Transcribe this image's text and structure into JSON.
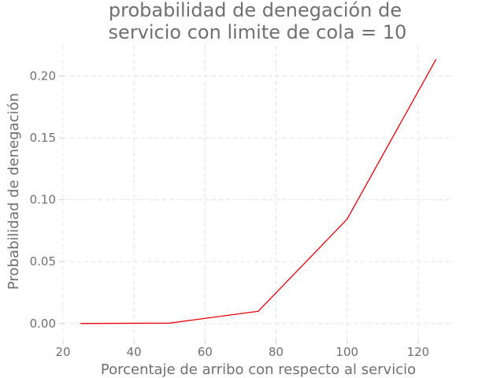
{
  "chart_data": {
    "type": "line",
    "title_lines": [
      "probabilidad de denegación de",
      "servicio con limite de cola = 10"
    ],
    "xlabel": "Porcentaje de arribo con respecto al servicio",
    "ylabel": "Probabilidad de denegación",
    "xlim": [
      20,
      130
    ],
    "ylim": [
      -0.0135,
      0.2245
    ],
    "xticks": [
      20,
      40,
      60,
      80,
      100,
      120
    ],
    "xtick_labels": [
      "20",
      "40",
      "60",
      "80",
      "100",
      "120"
    ],
    "yticks": [
      0.0,
      0.05,
      0.1,
      0.15,
      0.2
    ],
    "ytick_labels": [
      "0.00",
      "0.05",
      "0.10",
      "0.15",
      "0.20"
    ],
    "grid": true,
    "series": [
      {
        "color": "#e8000b",
        "x": [
          25,
          50,
          75,
          100,
          125
        ],
        "y": [
          0.0,
          0.0003,
          0.0099,
          0.0843,
          0.2132
        ]
      }
    ]
  }
}
